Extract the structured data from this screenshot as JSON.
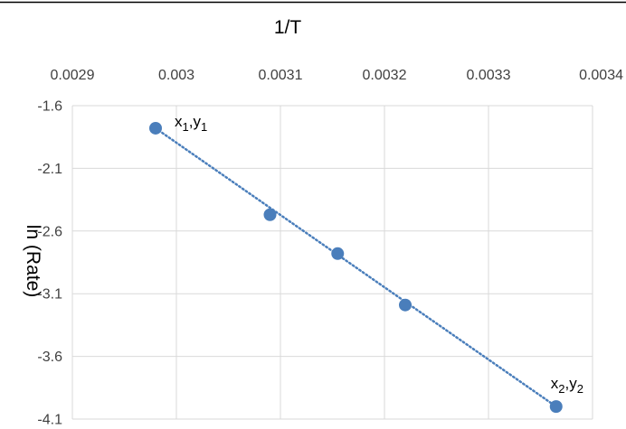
{
  "chart_data": {
    "type": "scatter",
    "xlabel": "1/T",
    "ylabel": "ln (Rate)",
    "x_axis_position": "top",
    "xlim": [
      0.0029,
      0.0034
    ],
    "ylim": [
      -4.1,
      -1.6
    ],
    "x_ticks": [
      "0.0029",
      "0.003",
      "0.0031",
      "0.0032",
      "0.0033",
      "0.0034"
    ],
    "y_ticks": [
      "-1.6",
      "-2.1",
      "-2.6",
      "-3.1",
      "-3.6",
      "-4.1"
    ],
    "grid": true,
    "trendline": "linear dotted",
    "series": [
      {
        "color": "#4a7ebb",
        "points": [
          {
            "x": 0.00298,
            "y": -1.78
          },
          {
            "x": 0.00309,
            "y": -2.47
          },
          {
            "x": 0.003155,
            "y": -2.78
          },
          {
            "x": 0.00322,
            "y": -3.19
          },
          {
            "x": 0.003365,
            "y": -4.0
          }
        ]
      }
    ],
    "annotations": [
      {
        "base1": "x",
        "sub1": "1",
        "sep": ",",
        "base2": "y",
        "sub2": "1",
        "x": 0.00298,
        "y": -1.78,
        "placement": "right"
      },
      {
        "base1": "x",
        "sub1": "2",
        "sep": ",",
        "base2": "y",
        "sub2": "2",
        "x": 0.003365,
        "y": -4.0,
        "placement": "above"
      }
    ]
  }
}
